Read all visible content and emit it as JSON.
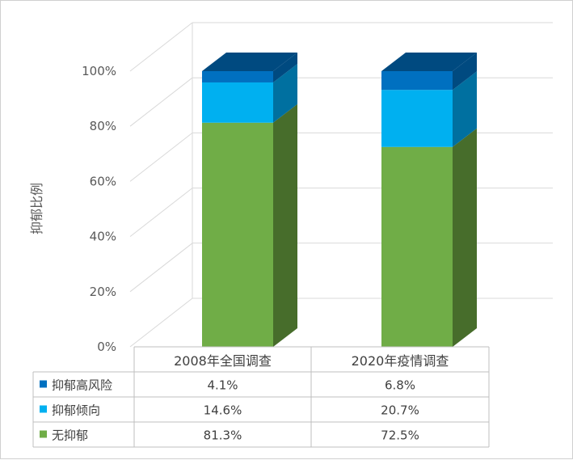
{
  "chart_data": {
    "type": "bar",
    "stacked": true,
    "three_d": true,
    "categories": [
      "2008年全国调查",
      "2020年疫情调查"
    ],
    "series": [
      {
        "name": "无抑郁",
        "values": [
          81.3,
          72.5
        ],
        "color": "#70ad47",
        "side_color": "#476d2b"
      },
      {
        "name": "抑郁倾向",
        "values": [
          14.6,
          20.7
        ],
        "color": "#00b0f0",
        "side_color": "#0070a0"
      },
      {
        "name": "抑郁高风险",
        "values": [
          4.1,
          6.8
        ],
        "color": "#0070c0",
        "side_color": "#004a80"
      }
    ],
    "table_values": [
      [
        "81.3%",
        "72.5%"
      ],
      [
        "14.6%",
        "20.7%"
      ],
      [
        "4.1%",
        "6.8%"
      ]
    ],
    "ylabel": "抑郁比例",
    "yticks": [
      "0%",
      "20%",
      "40%",
      "60%",
      "80%",
      "100%"
    ],
    "ylim": [
      0,
      100
    ],
    "grid": true,
    "data_table": true,
    "legend": "data-table"
  }
}
